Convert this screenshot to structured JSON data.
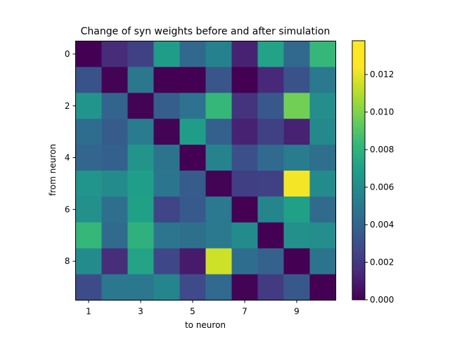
{
  "chart_data": {
    "type": "heatmap",
    "title": "Change of syn weights before and after simulation",
    "xlabel": "to neuron",
    "ylabel": "from neuron",
    "x_tick_labels": [
      "1",
      "3",
      "5",
      "7",
      "9"
    ],
    "y_tick_labels": [
      "0",
      "2",
      "4",
      "6",
      "8"
    ],
    "colormap": "viridis",
    "vmin": 0.0,
    "vmax": 0.0138,
    "colorbar_ticks": [
      0.0,
      0.002,
      0.004,
      0.006,
      0.008,
      0.01,
      0.012
    ],
    "colorbar_tick_labels": [
      "0.000",
      "0.002",
      "0.004",
      "0.006",
      "0.008",
      "0.010",
      "0.012"
    ],
    "matrix": [
      [
        0.0,
        0.0017,
        0.0027,
        0.0076,
        0.0046,
        0.0061,
        0.0013,
        0.0079,
        0.0046,
        0.0092
      ],
      [
        0.0035,
        0.0001,
        0.0055,
        0.0,
        0.0,
        0.0037,
        0.0,
        0.0016,
        0.0035,
        0.0056
      ],
      [
        0.0072,
        0.0044,
        0.0001,
        0.0041,
        0.0052,
        0.0092,
        0.0021,
        0.0038,
        0.0108,
        0.0068
      ],
      [
        0.0049,
        0.004,
        0.0058,
        0.0001,
        0.0076,
        0.0042,
        0.0013,
        0.0027,
        0.0013,
        0.0065
      ],
      [
        0.0045,
        0.0042,
        0.0071,
        0.0053,
        0.0,
        0.0062,
        0.0034,
        0.0047,
        0.0057,
        0.005
      ],
      [
        0.0072,
        0.0066,
        0.0077,
        0.0054,
        0.004,
        0.0001,
        0.0026,
        0.0027,
        0.0136,
        0.0066
      ],
      [
        0.0069,
        0.005,
        0.0078,
        0.0029,
        0.0039,
        0.0056,
        0.0,
        0.0063,
        0.0078,
        0.0048
      ],
      [
        0.0092,
        0.0048,
        0.0088,
        0.0054,
        0.005,
        0.0056,
        0.0066,
        0.0,
        0.0069,
        0.0068
      ],
      [
        0.0066,
        0.0018,
        0.008,
        0.003,
        0.001,
        0.0128,
        0.0049,
        0.0043,
        0.0,
        0.0053
      ],
      [
        0.0032,
        0.0055,
        0.0055,
        0.0063,
        0.0031,
        0.0047,
        0.0001,
        0.0024,
        0.0038,
        0.0
      ]
    ]
  }
}
